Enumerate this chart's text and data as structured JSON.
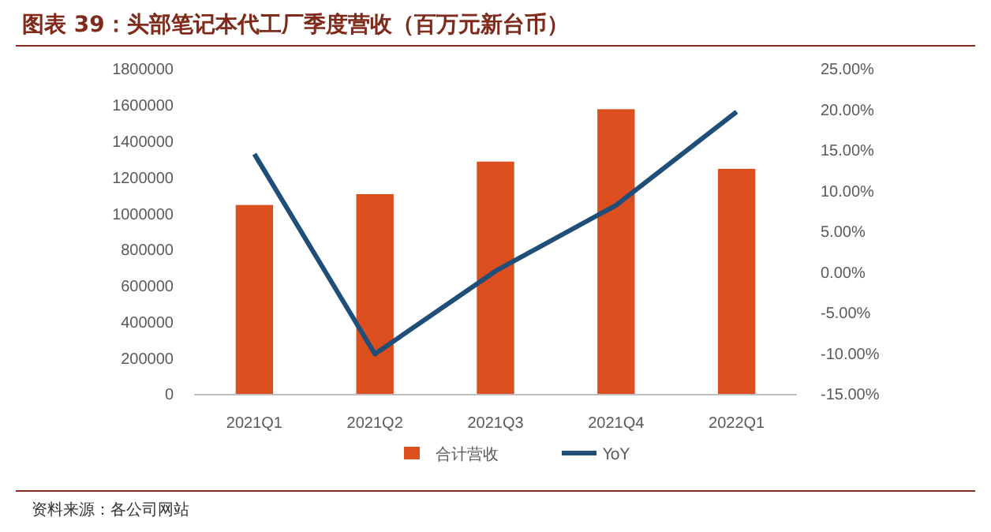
{
  "chart_data": {
    "type": "bar",
    "title": "图表 39：头部笔记本代工厂季度营收（百万元新台币）",
    "categories": [
      "2021Q1",
      "2021Q2",
      "2021Q3",
      "2021Q4",
      "2022Q1"
    ],
    "series": [
      {
        "name": "合计营收",
        "color": "#dc4f1f",
        "values": [
          1050000,
          1110000,
          1290000,
          1580000,
          1250000
        ]
      },
      {
        "name": "YoY",
        "type": "line",
        "axis": "y2",
        "color": "#1f4e79",
        "values": [
          14.6,
          -10.0,
          0.2,
          8.3,
          19.8
        ]
      }
    ],
    "ylim": [
      0,
      1800000
    ],
    "yticks": [
      0,
      200000,
      400000,
      600000,
      800000,
      1000000,
      1200000,
      1400000,
      1600000,
      1800000
    ],
    "y2lim": [
      -15,
      25
    ],
    "y2ticks": [
      {
        "value": -15,
        "label": "-15.00%"
      },
      {
        "value": -10,
        "label": "-10.00%"
      },
      {
        "value": -5,
        "label": "-5.00%"
      },
      {
        "value": 0,
        "label": "0.00%"
      },
      {
        "value": 5,
        "label": "5.00%"
      },
      {
        "value": 10,
        "label": "10.00%"
      },
      {
        "value": 15,
        "label": "15.00%"
      },
      {
        "value": 20,
        "label": "20.00%"
      },
      {
        "value": 25,
        "label": "25.00%"
      }
    ],
    "legend": "bottom",
    "grid": false,
    "annotations": [
      "资料来源：各公司网站"
    ]
  }
}
